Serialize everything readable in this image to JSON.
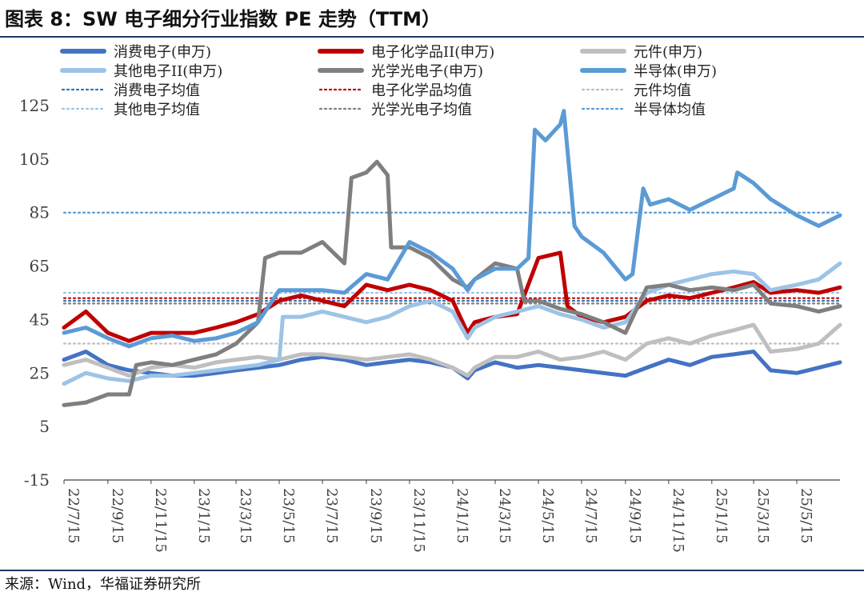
{
  "header": {
    "title": "图表 8：SW 电子细分行业指数 PE 走势（TTM）"
  },
  "footer": {
    "source": "来源：Wind，华福证券研究所"
  },
  "chart_data": {
    "type": "line",
    "title": "图表 8：SW 电子细分行业指数 PE 走势（TTM）",
    "xlabel": "",
    "ylabel": "",
    "ylim": [
      -15,
      125
    ],
    "yticks": [
      125,
      105,
      85,
      65,
      45,
      25,
      5,
      -15
    ],
    "x_start": "2022-07-15",
    "x_end": "2025-07-15",
    "x_ticks": [
      "22/7/15",
      "22/9/15",
      "22/11/15",
      "23/1/15",
      "23/3/15",
      "23/5/15",
      "23/7/15",
      "23/9/15",
      "23/11/15",
      "24/1/15",
      "24/3/15",
      "24/5/15",
      "24/7/15",
      "24/9/15",
      "24/11/15",
      "25/1/15",
      "25/3/15",
      "25/5/15"
    ],
    "grid": false,
    "legend_position": "top",
    "series": [
      {
        "name": "消费电子(申万)",
        "color": "#4472c4",
        "style": "solid",
        "width": 5,
        "points": [
          [
            "2022-07-15",
            30
          ],
          [
            "2022-08-15",
            33
          ],
          [
            "2022-09-15",
            28
          ],
          [
            "2022-10-15",
            26
          ],
          [
            "2022-11-15",
            25
          ],
          [
            "2022-12-15",
            24
          ],
          [
            "2023-01-15",
            24
          ],
          [
            "2023-02-15",
            25
          ],
          [
            "2023-03-15",
            26
          ],
          [
            "2023-04-15",
            27
          ],
          [
            "2023-05-15",
            28
          ],
          [
            "2023-06-15",
            30
          ],
          [
            "2023-07-15",
            31
          ],
          [
            "2023-08-15",
            30
          ],
          [
            "2023-09-15",
            28
          ],
          [
            "2023-10-15",
            29
          ],
          [
            "2023-11-15",
            30
          ],
          [
            "2023-12-15",
            29
          ],
          [
            "2024-01-15",
            27
          ],
          [
            "2024-02-05",
            23
          ],
          [
            "2024-02-15",
            26
          ],
          [
            "2024-03-15",
            29
          ],
          [
            "2024-04-15",
            27
          ],
          [
            "2024-05-15",
            28
          ],
          [
            "2024-06-15",
            27
          ],
          [
            "2024-07-15",
            26
          ],
          [
            "2024-08-15",
            25
          ],
          [
            "2024-09-15",
            24
          ],
          [
            "2024-10-15",
            27
          ],
          [
            "2024-11-15",
            30
          ],
          [
            "2024-12-15",
            28
          ],
          [
            "2025-01-15",
            31
          ],
          [
            "2025-02-15",
            32
          ],
          [
            "2025-03-15",
            33
          ],
          [
            "2025-04-08",
            26
          ],
          [
            "2025-05-15",
            25
          ],
          [
            "2025-06-15",
            27
          ],
          [
            "2025-07-15",
            29
          ]
        ]
      },
      {
        "name": "电子化学品II(申万)",
        "color": "#c00000",
        "style": "solid",
        "width": 5,
        "points": [
          [
            "2022-07-15",
            42
          ],
          [
            "2022-08-15",
            48
          ],
          [
            "2022-09-15",
            40
          ],
          [
            "2022-10-15",
            37
          ],
          [
            "2022-11-15",
            40
          ],
          [
            "2022-12-15",
            40
          ],
          [
            "2023-01-15",
            40
          ],
          [
            "2023-02-15",
            42
          ],
          [
            "2023-03-15",
            44
          ],
          [
            "2023-04-15",
            47
          ],
          [
            "2023-05-15",
            52
          ],
          [
            "2023-06-15",
            54
          ],
          [
            "2023-07-15",
            52
          ],
          [
            "2023-08-15",
            50
          ],
          [
            "2023-09-15",
            58
          ],
          [
            "2023-10-15",
            56
          ],
          [
            "2023-11-15",
            58
          ],
          [
            "2023-12-15",
            56
          ],
          [
            "2024-01-15",
            52
          ],
          [
            "2024-02-05",
            40
          ],
          [
            "2024-02-15",
            44
          ],
          [
            "2024-03-15",
            46
          ],
          [
            "2024-04-15",
            47
          ],
          [
            "2024-05-15",
            68
          ],
          [
            "2024-06-15",
            70
          ],
          [
            "2024-06-25",
            50
          ],
          [
            "2024-07-15",
            46
          ],
          [
            "2024-08-15",
            44
          ],
          [
            "2024-09-15",
            46
          ],
          [
            "2024-10-15",
            52
          ],
          [
            "2024-11-15",
            54
          ],
          [
            "2024-12-15",
            53
          ],
          [
            "2025-01-15",
            55
          ],
          [
            "2025-02-15",
            57
          ],
          [
            "2025-03-15",
            59
          ],
          [
            "2025-04-08",
            55
          ],
          [
            "2025-05-15",
            56
          ],
          [
            "2025-06-15",
            55
          ],
          [
            "2025-07-15",
            57
          ]
        ]
      },
      {
        "name": "元件(申万)",
        "color": "#bfbfbf",
        "style": "solid",
        "width": 5,
        "points": [
          [
            "2022-07-15",
            28
          ],
          [
            "2022-08-15",
            30
          ],
          [
            "2022-09-15",
            27
          ],
          [
            "2022-10-15",
            24
          ],
          [
            "2022-11-15",
            27
          ],
          [
            "2022-12-15",
            28
          ],
          [
            "2023-01-15",
            27
          ],
          [
            "2023-02-15",
            29
          ],
          [
            "2023-03-15",
            30
          ],
          [
            "2023-04-15",
            31
          ],
          [
            "2023-05-15",
            30
          ],
          [
            "2023-06-15",
            32
          ],
          [
            "2023-07-15",
            32
          ],
          [
            "2023-08-15",
            31
          ],
          [
            "2023-09-15",
            30
          ],
          [
            "2023-10-15",
            31
          ],
          [
            "2023-11-15",
            32
          ],
          [
            "2023-12-15",
            30
          ],
          [
            "2024-01-15",
            27
          ],
          [
            "2024-02-05",
            24
          ],
          [
            "2024-02-15",
            27
          ],
          [
            "2024-03-15",
            31
          ],
          [
            "2024-04-15",
            31
          ],
          [
            "2024-05-15",
            33
          ],
          [
            "2024-06-15",
            30
          ],
          [
            "2024-07-15",
            31
          ],
          [
            "2024-08-15",
            33
          ],
          [
            "2024-09-15",
            30
          ],
          [
            "2024-10-15",
            36
          ],
          [
            "2024-11-15",
            38
          ],
          [
            "2024-12-15",
            36
          ],
          [
            "2025-01-15",
            39
          ],
          [
            "2025-02-15",
            41
          ],
          [
            "2025-03-15",
            43
          ],
          [
            "2025-04-08",
            33
          ],
          [
            "2025-05-15",
            34
          ],
          [
            "2025-06-15",
            36
          ],
          [
            "2025-07-15",
            43
          ]
        ]
      },
      {
        "name": "其他电子II(申万)",
        "color": "#9dc3e6",
        "style": "solid",
        "width": 5,
        "points": [
          [
            "2022-07-15",
            21
          ],
          [
            "2022-08-15",
            25
          ],
          [
            "2022-09-15",
            23
          ],
          [
            "2022-10-15",
            22
          ],
          [
            "2022-11-15",
            24
          ],
          [
            "2022-12-15",
            24
          ],
          [
            "2023-01-15",
            25
          ],
          [
            "2023-02-15",
            26
          ],
          [
            "2023-03-15",
            27
          ],
          [
            "2023-04-15",
            28
          ],
          [
            "2023-05-15",
            30
          ],
          [
            "2023-05-20",
            46
          ],
          [
            "2023-06-15",
            46
          ],
          [
            "2023-07-15",
            48
          ],
          [
            "2023-08-15",
            46
          ],
          [
            "2023-09-15",
            44
          ],
          [
            "2023-10-15",
            46
          ],
          [
            "2023-11-15",
            50
          ],
          [
            "2023-12-15",
            52
          ],
          [
            "2024-01-15",
            48
          ],
          [
            "2024-02-05",
            38
          ],
          [
            "2024-02-15",
            42
          ],
          [
            "2024-03-15",
            46
          ],
          [
            "2024-04-15",
            48
          ],
          [
            "2024-05-15",
            50
          ],
          [
            "2024-06-15",
            47
          ],
          [
            "2024-07-15",
            45
          ],
          [
            "2024-08-15",
            42
          ],
          [
            "2024-09-15",
            44
          ],
          [
            "2024-10-15",
            55
          ],
          [
            "2024-11-15",
            58
          ],
          [
            "2024-12-15",
            60
          ],
          [
            "2025-01-15",
            62
          ],
          [
            "2025-02-15",
            63
          ],
          [
            "2025-03-15",
            62
          ],
          [
            "2025-04-08",
            56
          ],
          [
            "2025-05-15",
            58
          ],
          [
            "2025-06-15",
            60
          ],
          [
            "2025-07-15",
            66
          ]
        ]
      },
      {
        "name": "光学光电子(申万)",
        "color": "#7f7f7f",
        "style": "solid",
        "width": 5,
        "points": [
          [
            "2022-07-15",
            13
          ],
          [
            "2022-08-15",
            14
          ],
          [
            "2022-09-15",
            17
          ],
          [
            "2022-10-15",
            17
          ],
          [
            "2022-10-25",
            28
          ],
          [
            "2022-11-15",
            29
          ],
          [
            "2022-12-15",
            28
          ],
          [
            "2023-01-15",
            30
          ],
          [
            "2023-02-15",
            32
          ],
          [
            "2023-03-15",
            36
          ],
          [
            "2023-04-15",
            44
          ],
          [
            "2023-04-25",
            68
          ],
          [
            "2023-05-15",
            70
          ],
          [
            "2023-06-15",
            70
          ],
          [
            "2023-07-15",
            74
          ],
          [
            "2023-08-15",
            66
          ],
          [
            "2023-08-25",
            98
          ],
          [
            "2023-09-15",
            100
          ],
          [
            "2023-09-30",
            104
          ],
          [
            "2023-10-15",
            99
          ],
          [
            "2023-10-20",
            72
          ],
          [
            "2023-11-15",
            72
          ],
          [
            "2023-12-15",
            68
          ],
          [
            "2024-01-15",
            60
          ],
          [
            "2024-02-05",
            57
          ],
          [
            "2024-02-15",
            60
          ],
          [
            "2024-03-15",
            66
          ],
          [
            "2024-04-15",
            64
          ],
          [
            "2024-04-25",
            52
          ],
          [
            "2024-05-15",
            52
          ],
          [
            "2024-06-15",
            49
          ],
          [
            "2024-07-15",
            47
          ],
          [
            "2024-08-15",
            44
          ],
          [
            "2024-09-15",
            40
          ],
          [
            "2024-10-15",
            57
          ],
          [
            "2024-11-15",
            58
          ],
          [
            "2024-12-15",
            56
          ],
          [
            "2025-01-15",
            57
          ],
          [
            "2025-02-15",
            56
          ],
          [
            "2025-03-15",
            58
          ],
          [
            "2025-04-08",
            51
          ],
          [
            "2025-05-15",
            50
          ],
          [
            "2025-06-15",
            48
          ],
          [
            "2025-07-15",
            50
          ]
        ]
      },
      {
        "name": "半导体(申万)",
        "color": "#5b9bd5",
        "style": "solid",
        "width": 5,
        "points": [
          [
            "2022-07-15",
            40
          ],
          [
            "2022-08-15",
            42
          ],
          [
            "2022-09-15",
            38
          ],
          [
            "2022-10-15",
            35
          ],
          [
            "2022-11-15",
            38
          ],
          [
            "2022-12-15",
            39
          ],
          [
            "2023-01-15",
            37
          ],
          [
            "2023-02-15",
            38
          ],
          [
            "2023-03-15",
            40
          ],
          [
            "2023-04-15",
            44
          ],
          [
            "2023-05-15",
            56
          ],
          [
            "2023-06-15",
            56
          ],
          [
            "2023-07-15",
            56
          ],
          [
            "2023-08-15",
            55
          ],
          [
            "2023-09-15",
            62
          ],
          [
            "2023-10-15",
            60
          ],
          [
            "2023-11-15",
            74
          ],
          [
            "2023-12-15",
            70
          ],
          [
            "2024-01-15",
            64
          ],
          [
            "2024-02-05",
            56
          ],
          [
            "2024-02-15",
            60
          ],
          [
            "2024-03-15",
            64
          ],
          [
            "2024-04-15",
            64
          ],
          [
            "2024-05-01",
            68
          ],
          [
            "2024-05-10",
            116
          ],
          [
            "2024-05-25",
            112
          ],
          [
            "2024-06-15",
            118
          ],
          [
            "2024-06-20",
            123
          ],
          [
            "2024-07-05",
            80
          ],
          [
            "2024-07-15",
            76
          ],
          [
            "2024-08-15",
            70
          ],
          [
            "2024-09-15",
            60
          ],
          [
            "2024-09-25",
            62
          ],
          [
            "2024-10-10",
            94
          ],
          [
            "2024-10-20",
            88
          ],
          [
            "2024-11-15",
            90
          ],
          [
            "2024-12-15",
            86
          ],
          [
            "2025-01-15",
            90
          ],
          [
            "2025-02-15",
            94
          ],
          [
            "2025-02-20",
            100
          ],
          [
            "2025-03-15",
            96
          ],
          [
            "2025-04-08",
            90
          ],
          [
            "2025-05-15",
            84
          ],
          [
            "2025-06-15",
            80
          ],
          [
            "2025-07-15",
            84
          ]
        ]
      },
      {
        "name": "消费电子均值",
        "color": "#2e75b6",
        "style": "dotted",
        "width": 2.2,
        "value": 52
      },
      {
        "name": "电子化学品均值",
        "color": "#c00000",
        "style": "dotted",
        "width": 2.2,
        "value": 53
      },
      {
        "name": "元件均值",
        "color": "#bfbfbf",
        "style": "dotted",
        "width": 2.2,
        "value": 36
      },
      {
        "name": "其他电子均值",
        "color": "#9dc3e6",
        "style": "dotted",
        "width": 2.2,
        "value": 55
      },
      {
        "name": "光学光电子均值",
        "color": "#7f7f7f",
        "style": "dotted",
        "width": 2.2,
        "value": 51
      },
      {
        "name": "半导体均值",
        "color": "#5b9bd5",
        "style": "dotted",
        "width": 2.2,
        "value": 85
      }
    ]
  }
}
